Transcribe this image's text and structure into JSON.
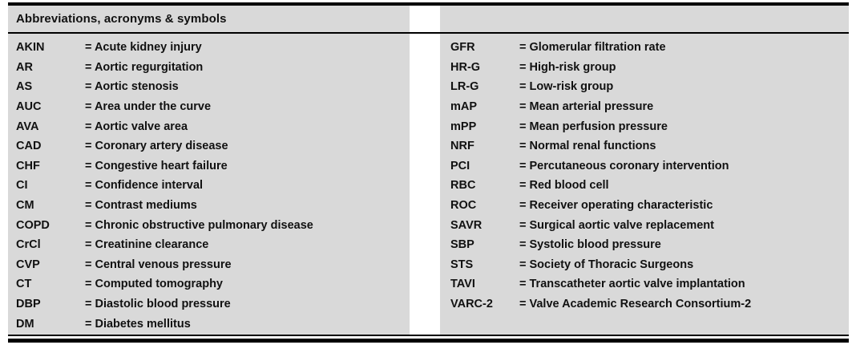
{
  "header": {
    "title": "Abbreviations, acronyms & symbols"
  },
  "columns": {
    "left": [
      {
        "abbr": "AKIN",
        "def": "= Acute kidney injury"
      },
      {
        "abbr": "AR",
        "def": "= Aortic regurgitation"
      },
      {
        "abbr": "AS",
        "def": "= Aortic stenosis"
      },
      {
        "abbr": "AUC",
        "def": "= Area under the curve"
      },
      {
        "abbr": "AVA",
        "def": "= Aortic valve area"
      },
      {
        "abbr": "CAD",
        "def": "= Coronary artery disease"
      },
      {
        "abbr": "CHF",
        "def": "= Congestive heart failure"
      },
      {
        "abbr": "CI",
        "def": "= Confidence interval"
      },
      {
        "abbr": "CM",
        "def": "= Contrast mediums"
      },
      {
        "abbr": "COPD",
        "def": "= Chronic obstructive pulmonary disease"
      },
      {
        "abbr": "CrCl",
        "def": "= Creatinine clearance"
      },
      {
        "abbr": "CVP",
        "def": "= Central venous pressure"
      },
      {
        "abbr": "CT",
        "def": "= Computed tomography"
      },
      {
        "abbr": "DBP",
        "def": "= Diastolic blood pressure"
      },
      {
        "abbr": "DM",
        "def": "= Diabetes mellitus"
      }
    ],
    "right": [
      {
        "abbr": "GFR",
        "def": "= Glomerular filtration rate"
      },
      {
        "abbr": "HR-G",
        "def": "= High-risk group"
      },
      {
        "abbr": "LR-G",
        "def": "= Low-risk group"
      },
      {
        "abbr": "mAP",
        "def": "= Mean arterial pressure"
      },
      {
        "abbr": "mPP",
        "def": "= Mean perfusion pressure"
      },
      {
        "abbr": "NRF",
        "def": "= Normal renal functions"
      },
      {
        "abbr": "PCI",
        "def": "= Percutaneous coronary intervention"
      },
      {
        "abbr": "RBC",
        "def": "= Red blood cell"
      },
      {
        "abbr": "ROC",
        "def": "= Receiver operating characteristic"
      },
      {
        "abbr": "SAVR",
        "def": "= Surgical aortic valve replacement"
      },
      {
        "abbr": "SBP",
        "def": "= Systolic blood pressure"
      },
      {
        "abbr": "STS",
        "def": "= Society of Thoracic Surgeons"
      },
      {
        "abbr": "TAVI",
        "def": "= Transcatheter aortic valve implantation"
      },
      {
        "abbr": "VARC-2",
        "def": "= Valve Academic Research Consortium-2"
      }
    ]
  },
  "colors": {
    "panel_gray": "#d9d9d9",
    "rule_black": "#000000",
    "text": "#111111"
  }
}
